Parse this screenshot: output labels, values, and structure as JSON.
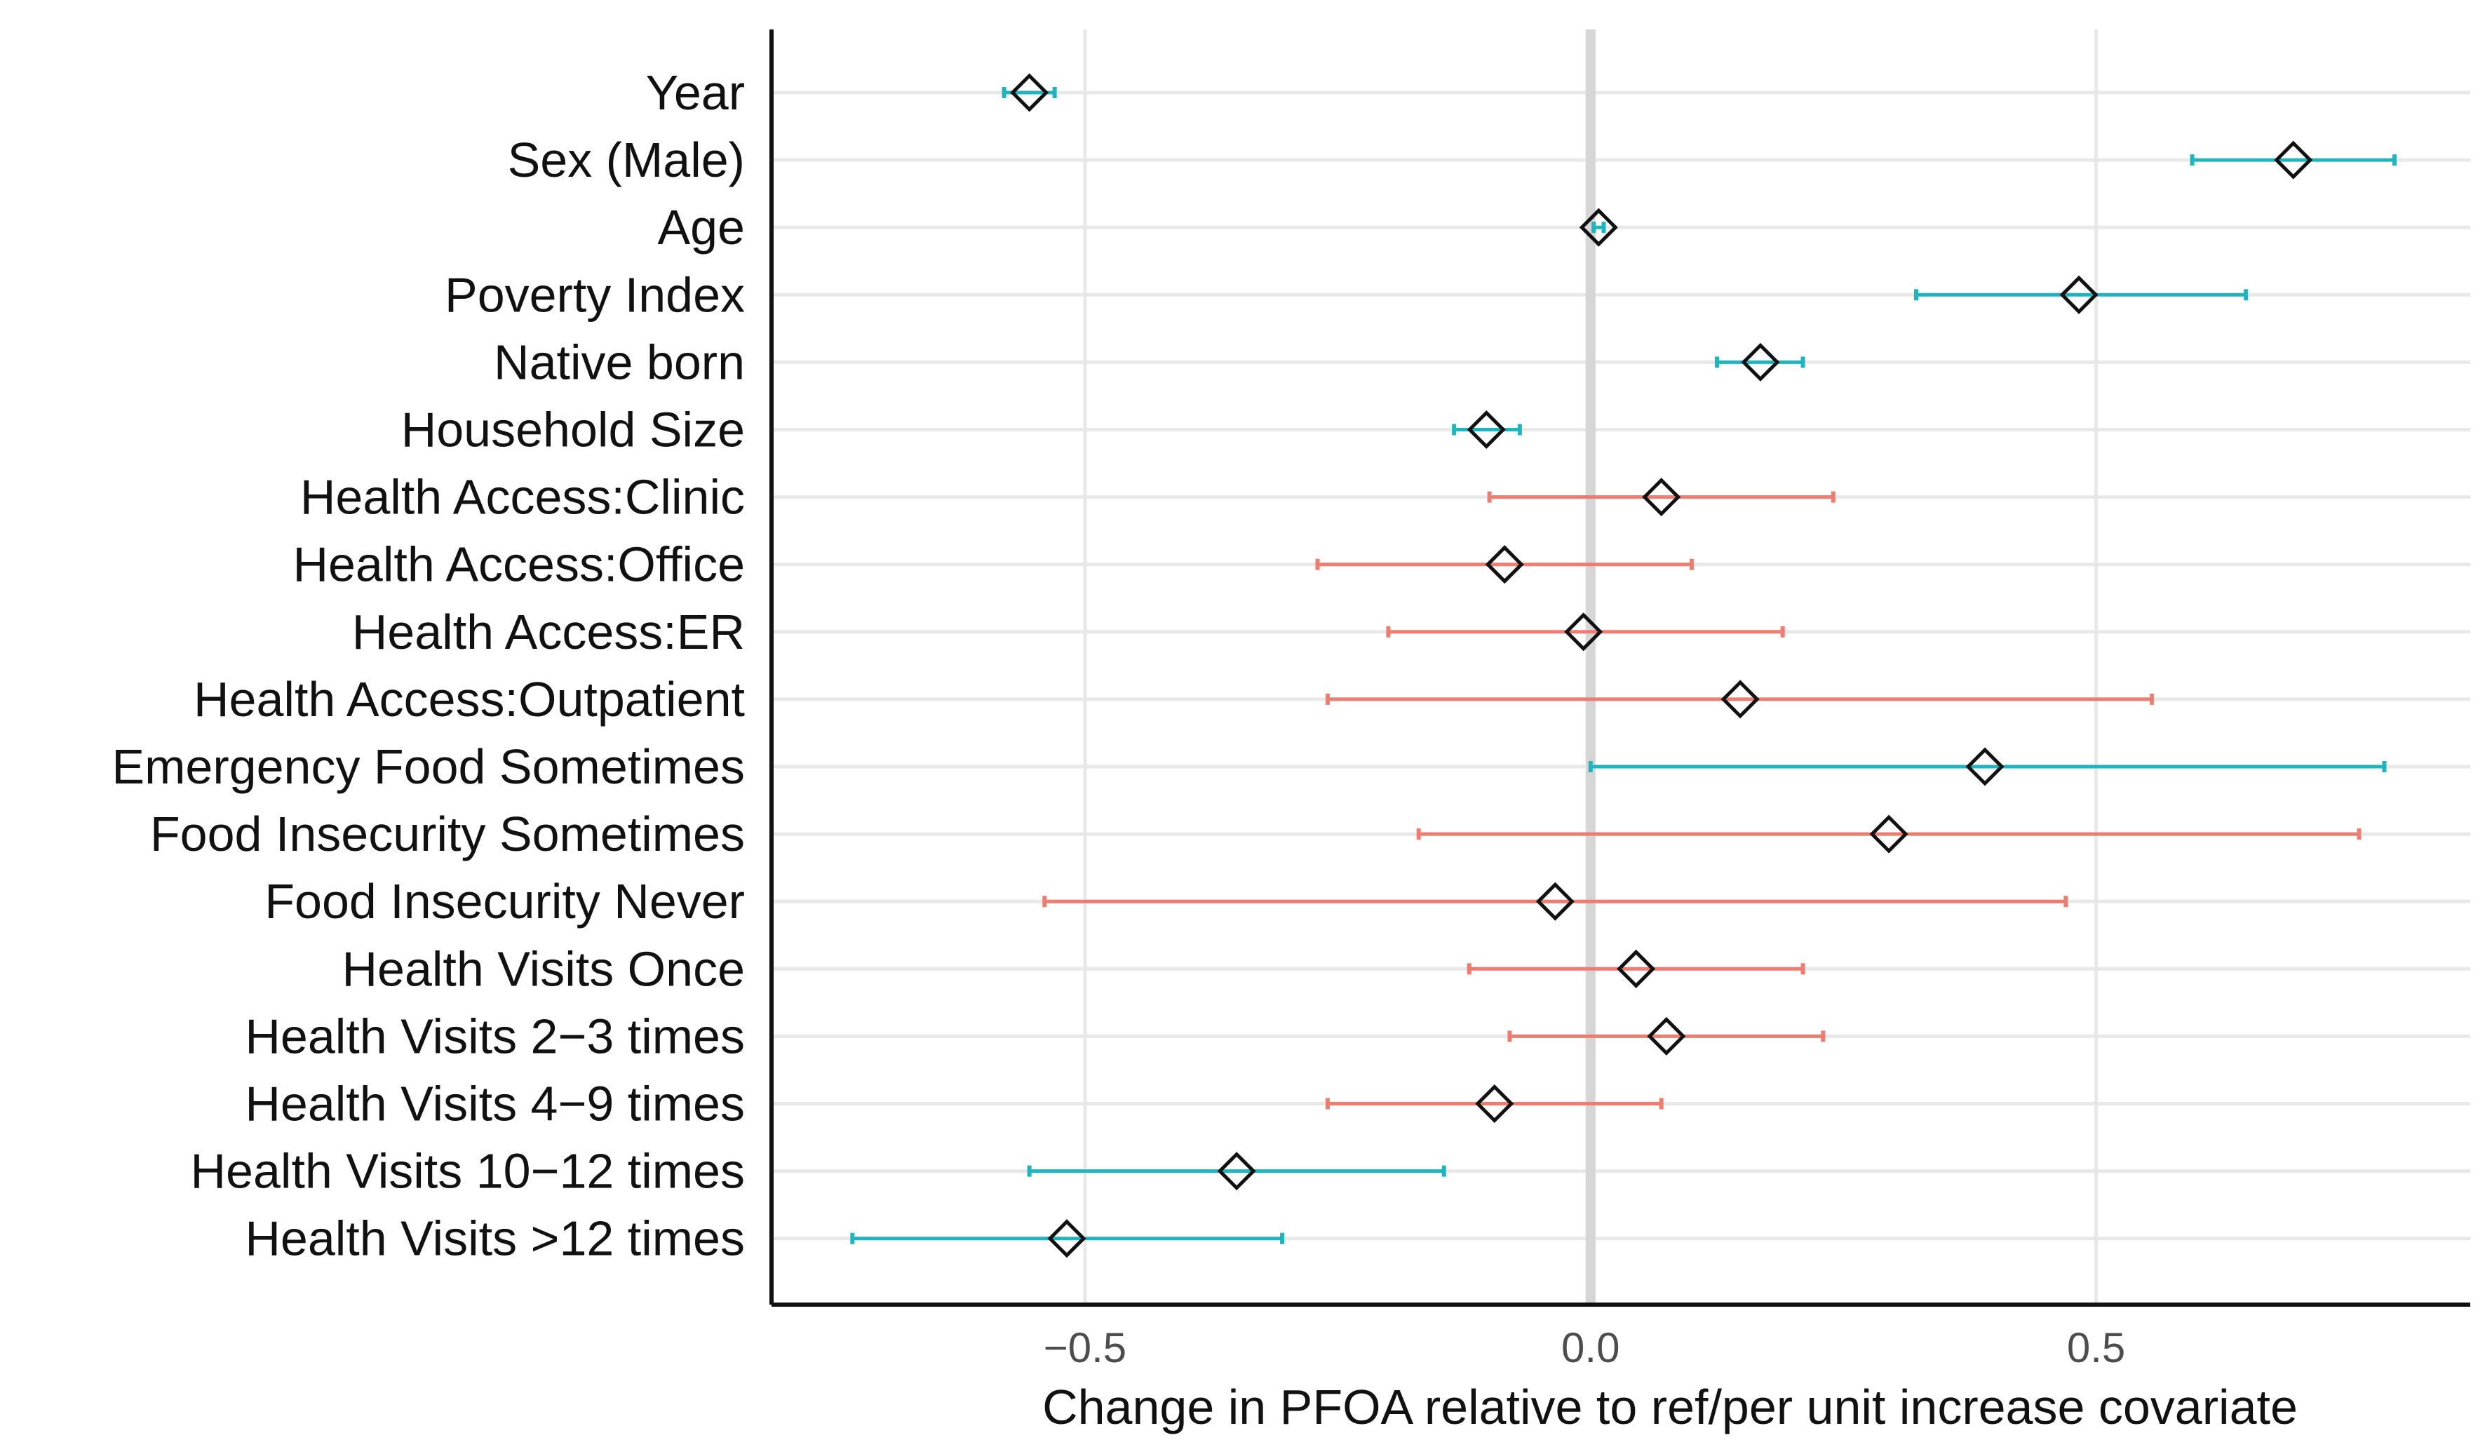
{
  "chart_data": {
    "type": "forest",
    "title": "",
    "xlabel": "Change in PFOA relative to ref/per unit increase covariate",
    "ylabel": "",
    "xlim": [
      -0.81,
      0.87
    ],
    "x_ticks": [
      {
        "value": -0.5,
        "label": "−0.5"
      },
      {
        "value": 0.0,
        "label": "0.0"
      },
      {
        "value": 0.5,
        "label": "0.5"
      }
    ],
    "grid": true,
    "reference_line": 0.0,
    "legend": "none",
    "colors": {
      "significant": "#1fb5bf",
      "non_significant": "#ee7d70",
      "reference": "#d6d6d6",
      "grid": "#e8e8e8",
      "marker": "#111111"
    },
    "rows": [
      {
        "label": "Year",
        "estimate": -0.555,
        "lower": -0.58,
        "upper": -0.53,
        "significant": true
      },
      {
        "label": "Sex (Male)",
        "estimate": 0.695,
        "lower": 0.595,
        "upper": 0.795,
        "significant": true
      },
      {
        "label": "Age",
        "estimate": 0.008,
        "lower": 0.003,
        "upper": 0.013,
        "significant": true
      },
      {
        "label": "Poverty Index",
        "estimate": 0.483,
        "lower": 0.322,
        "upper": 0.648,
        "significant": true
      },
      {
        "label": "Native born",
        "estimate": 0.168,
        "lower": 0.125,
        "upper": 0.21,
        "significant": true
      },
      {
        "label": "Household Size",
        "estimate": -0.103,
        "lower": -0.135,
        "upper": -0.07,
        "significant": true
      },
      {
        "label": "Health Access:Clinic",
        "estimate": 0.07,
        "lower": -0.1,
        "upper": 0.24,
        "significant": false
      },
      {
        "label": "Health Access:Office",
        "estimate": -0.085,
        "lower": -0.27,
        "upper": 0.1,
        "significant": false
      },
      {
        "label": "Health Access:ER",
        "estimate": -0.007,
        "lower": -0.2,
        "upper": 0.19,
        "significant": false
      },
      {
        "label": "Health Access:Outpatient",
        "estimate": 0.148,
        "lower": -0.26,
        "upper": 0.555,
        "significant": false
      },
      {
        "label": "Emergency Food Sometimes",
        "estimate": 0.39,
        "lower": 0.0,
        "upper": 0.785,
        "significant": true
      },
      {
        "label": "Food Insecurity Sometimes",
        "estimate": 0.295,
        "lower": -0.17,
        "upper": 0.76,
        "significant": false
      },
      {
        "label": "Food Insecurity Never",
        "estimate": -0.035,
        "lower": -0.54,
        "upper": 0.47,
        "significant": false
      },
      {
        "label": "Health Visits Once",
        "estimate": 0.045,
        "lower": -0.12,
        "upper": 0.21,
        "significant": false
      },
      {
        "label": "Health Visits 2−3 times",
        "estimate": 0.075,
        "lower": -0.08,
        "upper": 0.23,
        "significant": false
      },
      {
        "label": "Health Visits 4−9 times",
        "estimate": -0.095,
        "lower": -0.26,
        "upper": 0.07,
        "significant": false
      },
      {
        "label": "Health Visits 10−12 times",
        "estimate": -0.35,
        "lower": -0.555,
        "upper": -0.145,
        "significant": true
      },
      {
        "label": "Health Visits >12 times",
        "estimate": -0.518,
        "lower": -0.73,
        "upper": -0.305,
        "significant": true
      }
    ]
  }
}
